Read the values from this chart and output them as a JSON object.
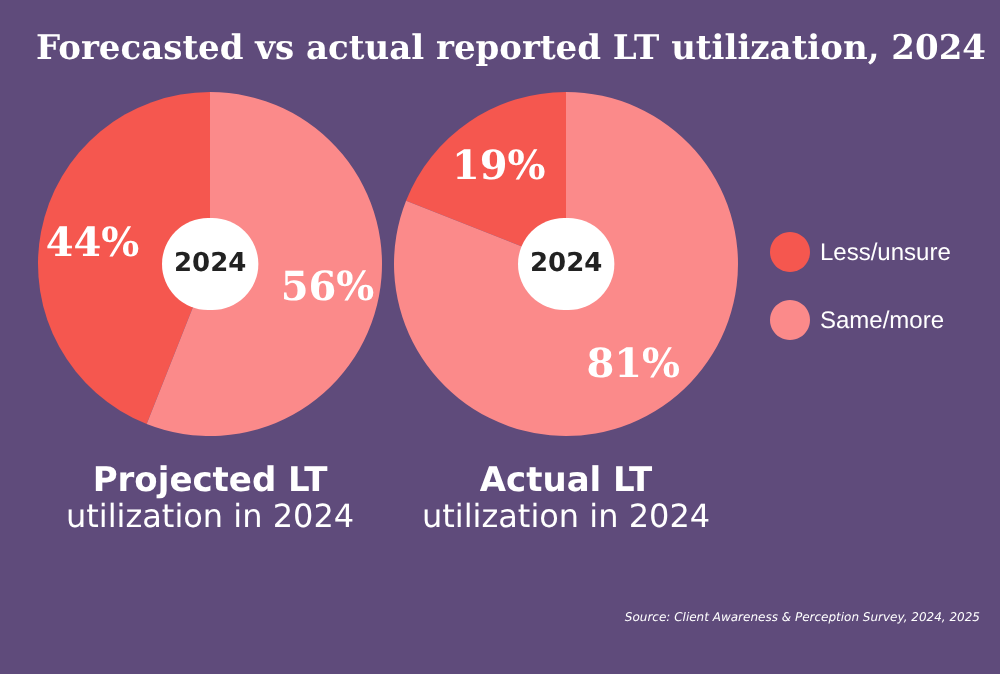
{
  "chart_data": {
    "type": "pie",
    "title": "Forecasted vs actual reported LT utilization, 2024",
    "categories": [
      "Less/unsure",
      "Same/more"
    ],
    "legend": "right",
    "series": [
      {
        "name": "Projected LT\nutilization in 2024",
        "values": [
          44,
          56
        ],
        "value_labels": [
          "44%",
          "56%"
        ],
        "colors": [
          "#f5574f",
          "#fb8a8a"
        ]
      },
      {
        "name": "Actual LT\nutilization in 2024",
        "values": [
          19,
          81
        ],
        "value_labels": [
          "19%",
          "81%"
        ],
        "colors": [
          "#f5574f",
          "#fb8a8a"
        ]
      }
    ],
    "annotations": [
      "2024",
      "2024",
      "Source: Client Awareness & Perception Survey, 2024, 2025"
    ]
  }
}
